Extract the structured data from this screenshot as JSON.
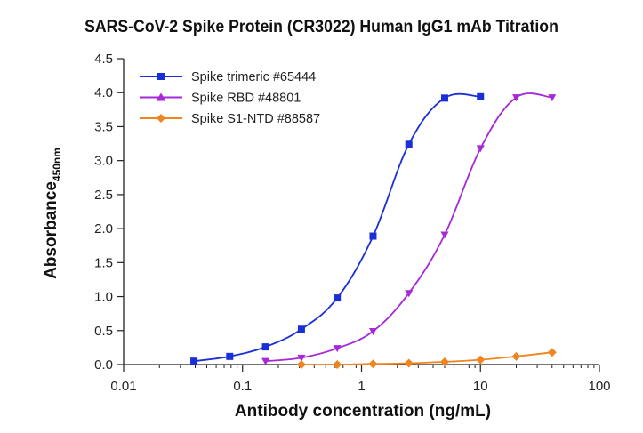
{
  "chart_data": {
    "type": "line",
    "title": "SARS-CoV-2 Spike Protein (CR3022) Human IgG1 mAb Titration",
    "xlabel": "Antibody concentration (ng/mL)",
    "ylabel_main": "Absorbance",
    "ylabel_sub": "450nm",
    "x_scale": "log",
    "xlim": [
      0.01,
      100
    ],
    "ylim": [
      0,
      4.5
    ],
    "x_ticks": [
      0.01,
      0.1,
      1,
      10,
      100
    ],
    "x_tick_labels": [
      "0.01",
      "0.1",
      "1",
      "10",
      "100"
    ],
    "y_ticks": [
      0,
      0.5,
      1,
      1.5,
      2,
      2.5,
      3,
      3.5,
      4,
      4.5
    ],
    "y_tick_labels": [
      "0.0",
      "0.5",
      "1.0",
      "1.5",
      "2.0",
      "2.5",
      "3.0",
      "3.5",
      "4.0",
      "4.5"
    ],
    "legend_position": "top-left",
    "grid": false,
    "series": [
      {
        "name": "Spike trimeric #65444",
        "color": "#1a2fd6",
        "marker": "square",
        "points": [
          [
            0.039,
            0.05
          ],
          [
            0.078,
            0.12
          ],
          [
            0.156,
            0.26
          ],
          [
            0.3125,
            0.52
          ],
          [
            0.625,
            0.98
          ],
          [
            1.25,
            1.89
          ],
          [
            2.5,
            3.24
          ],
          [
            5,
            3.92
          ],
          [
            10,
            3.94
          ]
        ]
      },
      {
        "name": "Spike RBD #48801",
        "color": "#a728d8",
        "marker": "triangle",
        "points": [
          [
            0.156,
            0.05
          ],
          [
            0.3125,
            0.1
          ],
          [
            0.625,
            0.24
          ],
          [
            1.25,
            0.49
          ],
          [
            2.5,
            1.05
          ],
          [
            5,
            1.91
          ],
          [
            10,
            3.18
          ],
          [
            20,
            3.93
          ],
          [
            40,
            3.93
          ]
        ]
      },
      {
        "name": "Spike S1-NTD #88587",
        "color": "#f0851f",
        "marker": "diamond",
        "points": [
          [
            0.3125,
            0.0
          ],
          [
            0.625,
            0.0
          ],
          [
            1.25,
            0.01
          ],
          [
            2.5,
            0.02
          ],
          [
            5,
            0.04
          ],
          [
            10,
            0.07
          ],
          [
            20,
            0.12
          ],
          [
            40,
            0.18
          ]
        ]
      }
    ]
  }
}
